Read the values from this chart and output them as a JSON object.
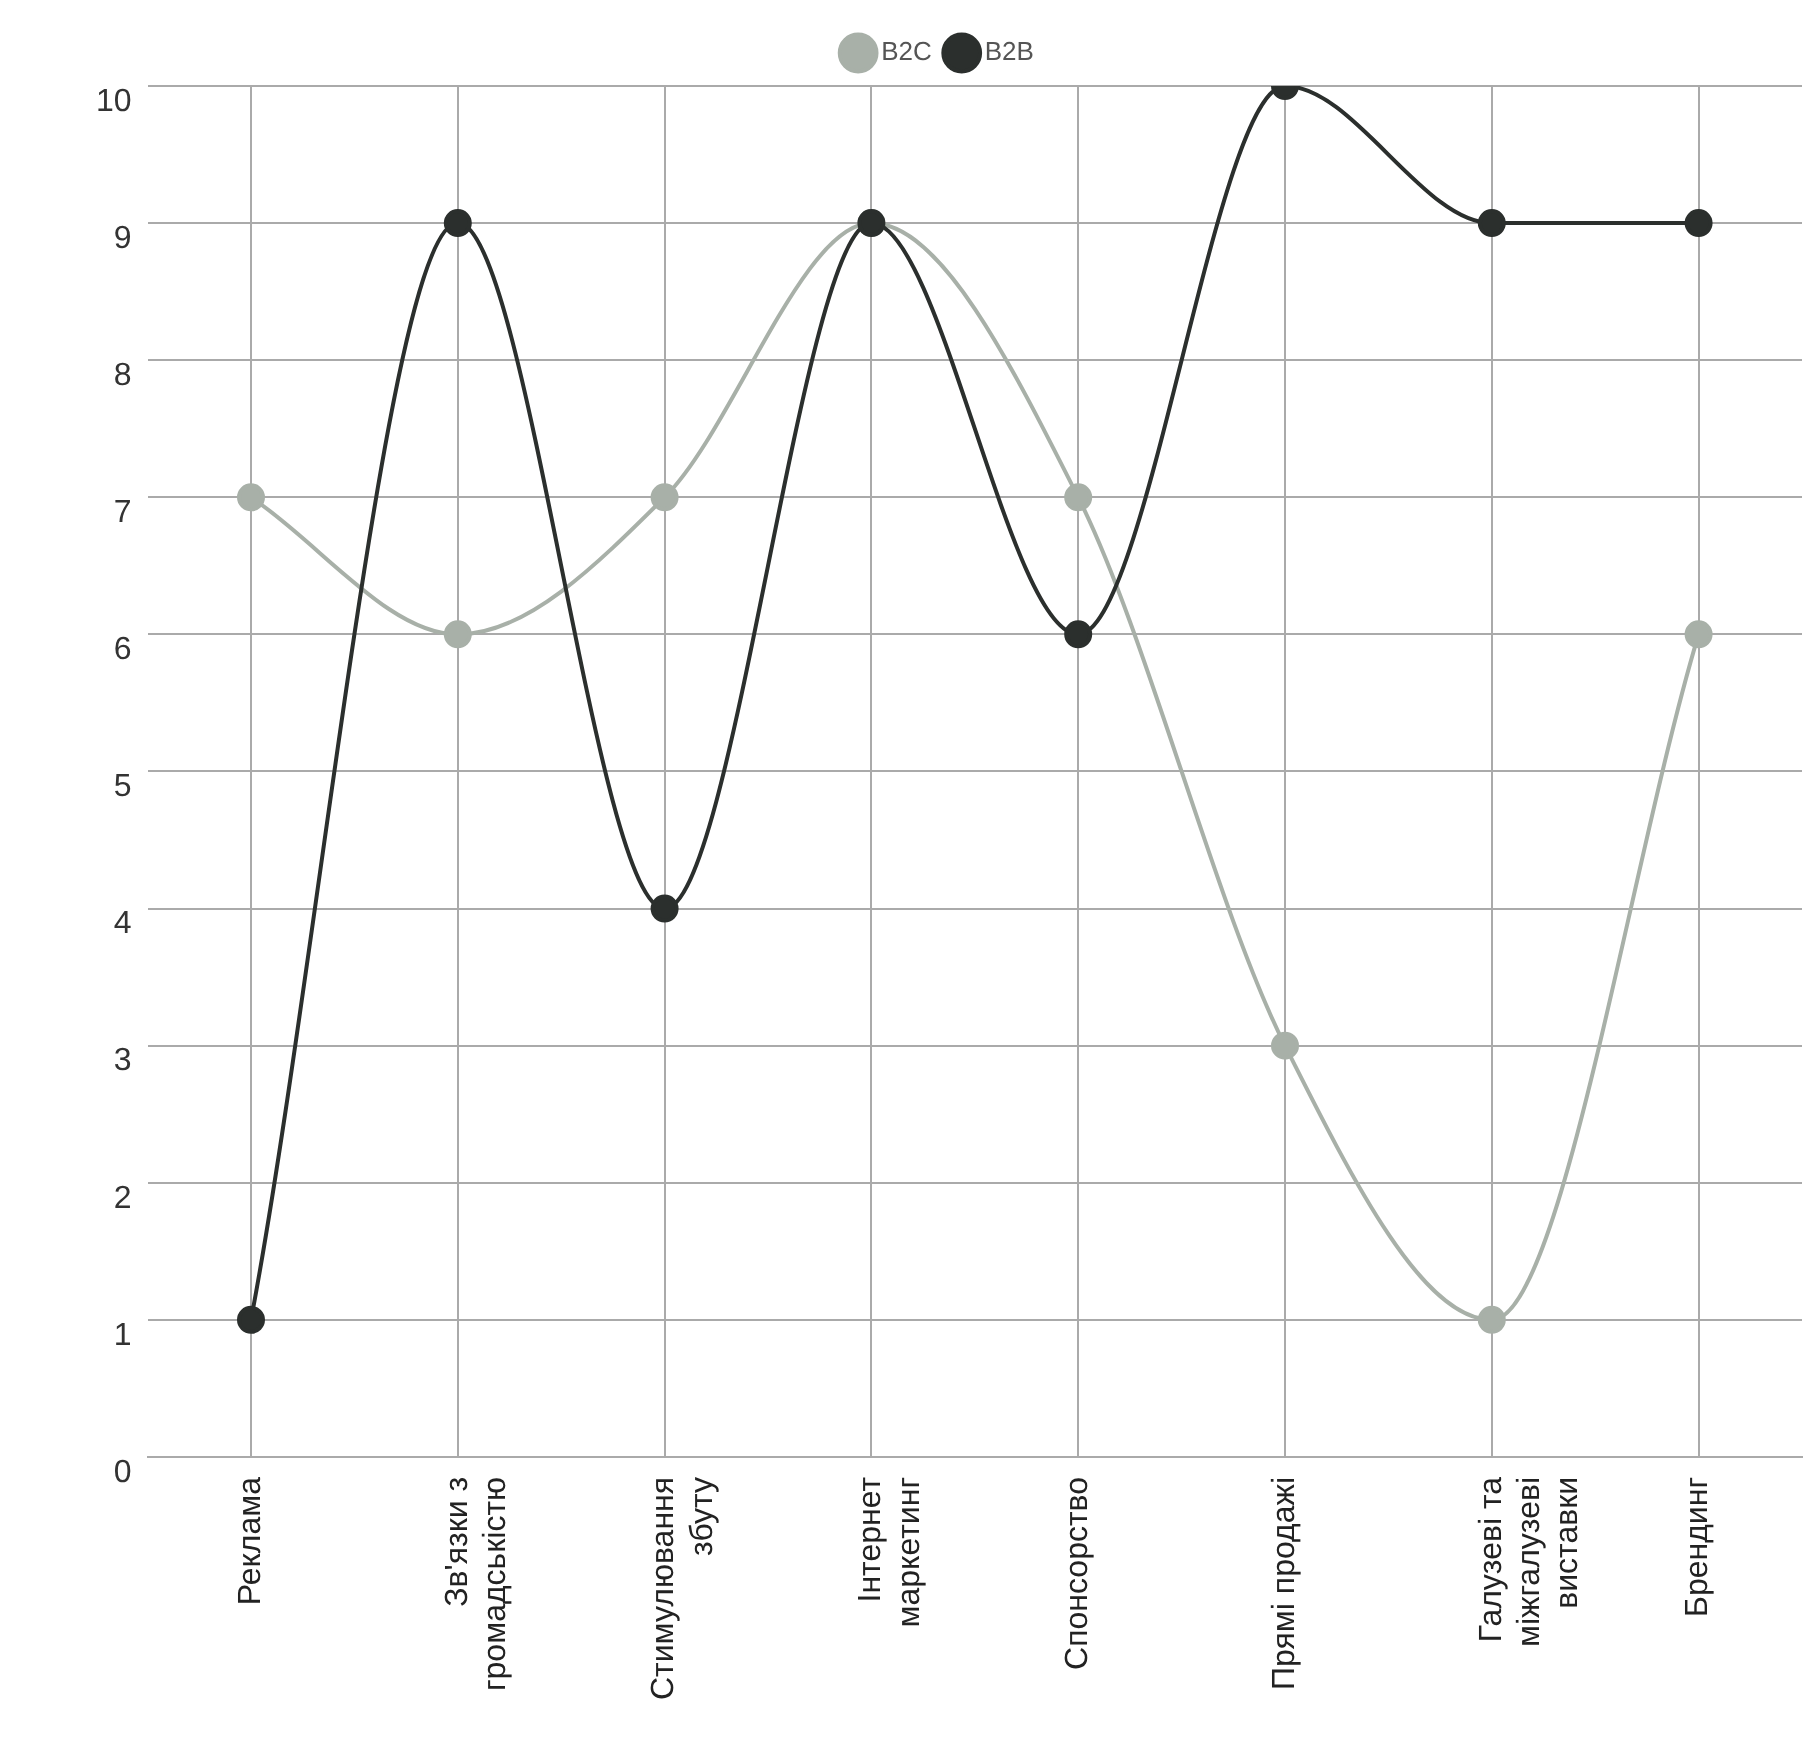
{
  "chart_data": {
    "type": "line",
    "categories": [
      "Реклама",
      "Зв'язки з громадськістю",
      "Стимулювання збуту",
      "Інтернет маркетинг",
      "Спонсорство",
      "Прямі продажі",
      "Галузеві та міжгалузеві виставки",
      "Брендинг"
    ],
    "series": [
      {
        "name": "B2C",
        "color": "#a8b0a8",
        "values": [
          7,
          6,
          7,
          9,
          7,
          3,
          1,
          6
        ]
      },
      {
        "name": "B2B",
        "color": "#2b2f2d",
        "values": [
          1,
          9,
          4,
          9,
          6,
          10,
          9,
          9
        ]
      }
    ],
    "ylim": [
      0,
      10
    ],
    "yticks": [
      0,
      1,
      2,
      3,
      4,
      5,
      6,
      7,
      8,
      9,
      10
    ],
    "grid": true,
    "legend": "top",
    "marker": "circle",
    "line_style": "solid"
  }
}
